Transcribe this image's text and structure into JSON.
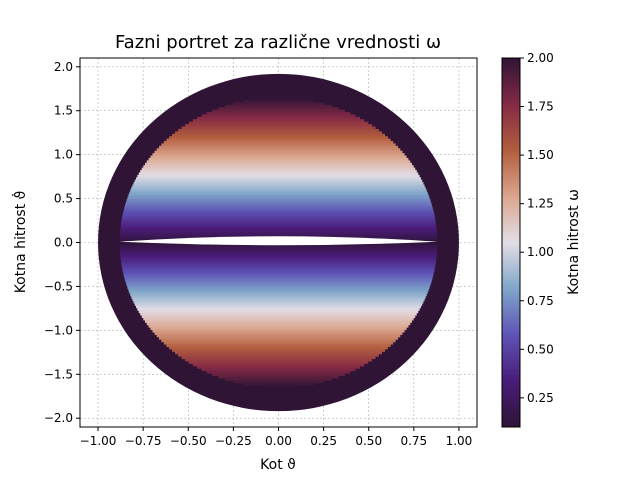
{
  "chart_data": {
    "type": "heatmap",
    "title": "Fazni portret za različne vrednosti  ω",
    "xlabel": "Kot ϑ",
    "ylabel": "Kotna hitrost ϑ̇",
    "colorbar_label": "Kotna hitrost ω",
    "xlim": [
      -1.1,
      1.1
    ],
    "ylim": [
      -2.1,
      2.1
    ],
    "x_ticks": [
      -1.0,
      -0.75,
      -0.5,
      -0.25,
      0.0,
      0.25,
      0.5,
      0.75,
      1.0
    ],
    "x_tick_labels": [
      "−1.00",
      "−0.75",
      "−0.50",
      "−0.25",
      "0.00",
      "0.25",
      "0.50",
      "0.75",
      "1.00"
    ],
    "y_ticks": [
      -2.0,
      -1.5,
      -1.0,
      -0.5,
      0.0,
      0.5,
      1.0,
      1.5,
      2.0
    ],
    "y_tick_labels": [
      "−2.0",
      "−1.5",
      "−1.0",
      "−0.5",
      "0.0",
      "0.5",
      "1.0",
      "1.5",
      "2.0"
    ],
    "colorbar_range": [
      0.1,
      2.0
    ],
    "colorbar_ticks": [
      0.25,
      0.5,
      0.75,
      1.0,
      1.25,
      1.5,
      1.75,
      2.0
    ],
    "colorbar_tick_labels": [
      "0.25",
      "0.50",
      "0.75",
      "1.00",
      "1.25",
      "1.50",
      "1.75",
      "2.00"
    ],
    "colormap": "twilight_shifted",
    "grid": true,
    "shape": {
      "outer_theta_max": 1.0,
      "outer_omega_max": 1.92,
      "inner_theta_max": 0.88,
      "inner_omega_max": 1.65,
      "gap_center_omega": 0.02
    }
  },
  "colors": {
    "stops": [
      "#2f1436",
      "#4a1c7a",
      "#5e54b6",
      "#7fa6c9",
      "#e2dde6",
      "#dba58e",
      "#b25d3e",
      "#842a45",
      "#2f1436"
    ]
  }
}
